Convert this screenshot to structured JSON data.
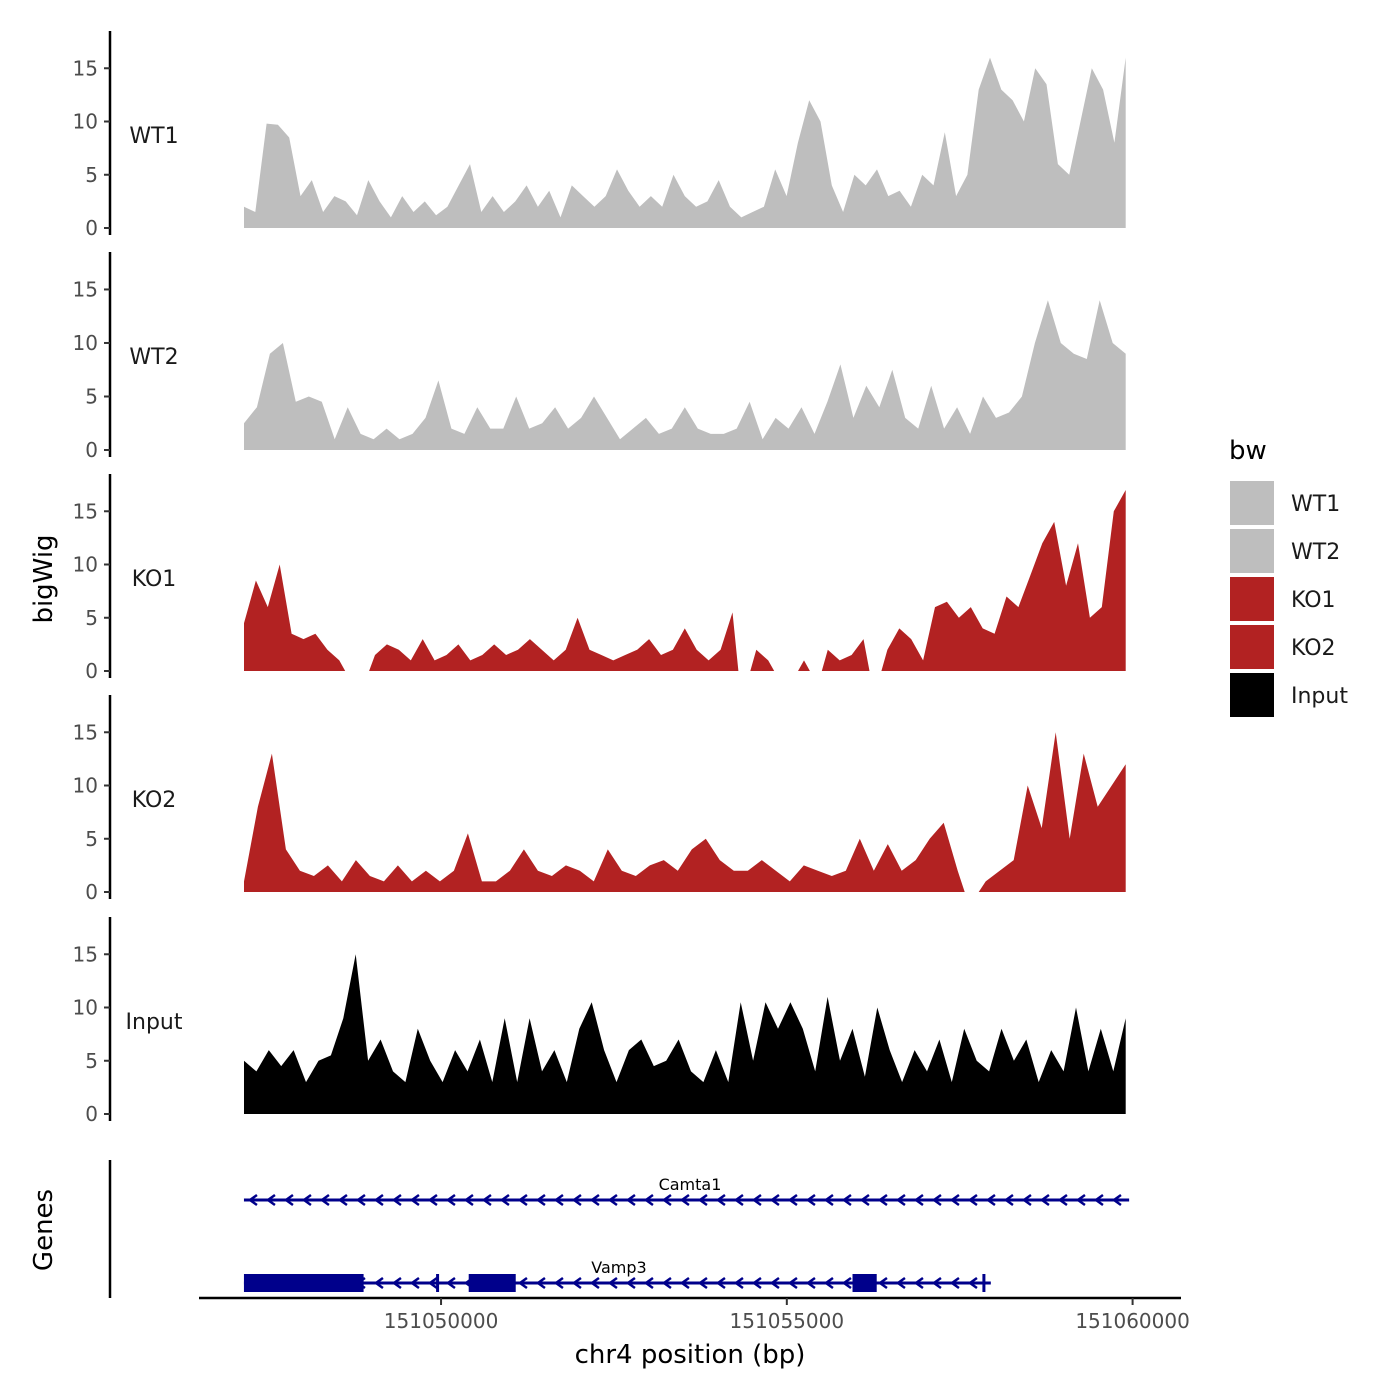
{
  "chart_data": {
    "type": "area",
    "x_title": "chr4 position (bp)",
    "y_title": "bigWig",
    "gene_panel_title": "Genes",
    "xlim": [
      151046500,
      151060700
    ],
    "x_ticks": [
      151050000,
      151055000,
      151060000
    ],
    "x_tick_labels": [
      "151050000",
      "151055000",
      "151060000"
    ],
    "ylim": [
      0,
      18.5
    ],
    "y_ticks": [
      0,
      5,
      10,
      15
    ],
    "y_tick_labels": [
      "0",
      "5",
      "10",
      "15"
    ],
    "x_start": 151047150,
    "x_end": 151059900,
    "legend": {
      "title": "bw",
      "entries": [
        {
          "label": "WT1",
          "color": "#bebebe"
        },
        {
          "label": "WT2",
          "color": "#bebebe"
        },
        {
          "label": "KO1",
          "color": "#b22222"
        },
        {
          "label": "KO2",
          "color": "#b22222"
        },
        {
          "label": "Input",
          "color": "#000000"
        }
      ]
    },
    "series": [
      {
        "name": "WT1",
        "color": "#bebebe",
        "values": [
          2,
          1.5,
          9.8,
          9.7,
          8.5,
          3,
          4.5,
          1.5,
          3,
          2.5,
          1.2,
          4.5,
          2.5,
          1,
          3,
          1.5,
          2.5,
          1.2,
          2,
          4,
          6,
          1.5,
          3,
          1.5,
          2.5,
          4,
          2,
          3.5,
          1,
          4,
          3,
          2,
          3,
          5.5,
          3.5,
          2,
          3,
          2,
          5,
          3,
          2,
          2.5,
          4.5,
          2,
          1,
          1.5,
          2,
          5.5,
          3,
          8,
          12,
          10,
          4,
          1.5,
          5,
          4,
          5.5,
          3,
          3.5,
          2,
          5,
          4,
          9,
          3,
          5,
          13,
          16,
          13,
          12,
          10,
          15,
          13.5,
          6,
          5,
          10,
          15,
          13,
          8,
          16
        ]
      },
      {
        "name": "WT2",
        "color": "#bebebe",
        "values": [
          2.5,
          4,
          9,
          10,
          4.5,
          5,
          4.5,
          1,
          4,
          1.5,
          1,
          2,
          1,
          1.5,
          3,
          6.5,
          2,
          1.5,
          4,
          2,
          2,
          5,
          2,
          2.5,
          4,
          2,
          3,
          5,
          3,
          1,
          2,
          3,
          1.5,
          2,
          4,
          2,
          1.5,
          1.5,
          2,
          4.5,
          1,
          3,
          2,
          4,
          1.5,
          4.5,
          8,
          3,
          6,
          4,
          7.5,
          3,
          2,
          6,
          2,
          4,
          1.5,
          5,
          3,
          3.5,
          5,
          10,
          14,
          10,
          9,
          8.5,
          14,
          10,
          9
        ]
      },
      {
        "name": "KO1",
        "color": "#b22222",
        "values": [
          4.5,
          8.5,
          6,
          10,
          3.5,
          3,
          3.5,
          2,
          1,
          -1,
          -1,
          1.5,
          2.5,
          2,
          1,
          3,
          1,
          1.5,
          2.5,
          1,
          1.5,
          2.5,
          1.5,
          2,
          3,
          2,
          1,
          2,
          5,
          2,
          1.5,
          1,
          1.5,
          2,
          3,
          1.5,
          2,
          4,
          2,
          1,
          2,
          5.5,
          -1,
          2,
          1,
          -1,
          -1,
          1,
          -1,
          2,
          1,
          1.5,
          3,
          -1,
          2,
          4,
          3,
          1,
          6,
          6.5,
          5,
          6,
          4,
          3.5,
          7,
          6,
          9,
          12,
          14,
          8,
          12,
          5,
          6,
          15,
          17
        ]
      },
      {
        "name": "KO2",
        "color": "#b22222",
        "values": [
          1,
          8,
          13,
          4,
          2,
          1.5,
          2.5,
          1,
          3,
          1.5,
          1,
          2.5,
          1,
          2,
          1,
          2,
          5.5,
          1,
          1,
          2,
          4,
          2,
          1.5,
          2.5,
          2,
          1,
          4,
          2,
          1.5,
          2.5,
          3,
          2,
          4,
          5,
          3,
          2,
          2,
          3,
          2,
          1,
          2.5,
          2,
          1.5,
          2,
          5,
          2,
          4.5,
          2,
          3,
          5,
          6.5,
          2,
          -1,
          1,
          2,
          3,
          10,
          6,
          15,
          5,
          13,
          8,
          10,
          12
        ]
      },
      {
        "name": "Input",
        "color": "#000000",
        "values": [
          5,
          4,
          6,
          4.5,
          6,
          3,
          5,
          5.5,
          9,
          15,
          5,
          7,
          4,
          3,
          8,
          5,
          3,
          6,
          4,
          7,
          3,
          9,
          3,
          9,
          4,
          6,
          3,
          8,
          10.5,
          6,
          3,
          6,
          7,
          4.5,
          5,
          7,
          4,
          3,
          6,
          3,
          10.5,
          5,
          10.5,
          8,
          10.5,
          8,
          4,
          11,
          5,
          8,
          3.5,
          10,
          6,
          3,
          6,
          4,
          7,
          3,
          8,
          5,
          4,
          8,
          5,
          7,
          3,
          6,
          4,
          10,
          4,
          8,
          4,
          9
        ]
      }
    ],
    "genes": [
      {
        "name": "Camta1",
        "strand": "-",
        "start": 151047150,
        "end": 151059950,
        "exons": []
      },
      {
        "name": "Vamp3",
        "strand": "-",
        "start": 151047150,
        "end": 151057950,
        "exons": [
          [
            151047150,
            151048880
          ],
          [
            151050400,
            151051080
          ],
          [
            151055950,
            151056300
          ]
        ],
        "tick_marks": [
          151049950,
          151057850
        ]
      }
    ]
  }
}
